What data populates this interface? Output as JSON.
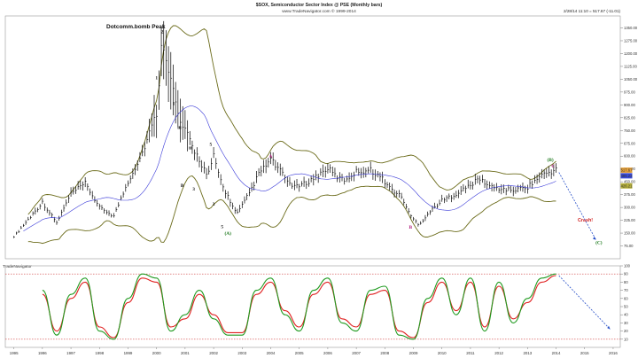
{
  "header": {
    "title": "$SOX, Semiconductor Sector Index @ PSE (Monthly bars)",
    "subtitle": "www.TradeNavigator.com © 1999-2014",
    "quote": "2/28/14 11:10 = 517.67 (-11.01)"
  },
  "annotations": {
    "peak_label": "Dotcomm.bomb Peak",
    "logo": "TradeNavigator",
    "crash_label": "Crash!"
  },
  "colors": {
    "price_bars": "#000000",
    "bands": "#6b6b1a",
    "moving_average": "#3838d8",
    "stoch_k": "#1f9a1f",
    "stoch_d": "#e02020",
    "projection": "#2850c8",
    "reference_lines": "#d04040"
  },
  "chart_data": [
    {
      "type": "line",
      "title": "$SOX, Semiconductor Sector Index @ PSE (Monthly bars)",
      "x_ticks": [
        "1995",
        "1996",
        "1997",
        "1998",
        "1999",
        "2000",
        "2001",
        "2002",
        "2003",
        "2004",
        "2005",
        "2006",
        "2007",
        "2008",
        "2009",
        "2010",
        "2011",
        "2012",
        "2013",
        "2014",
        "2015",
        "2016"
      ],
      "y_ticks": [
        "1350.00",
        "1275.00",
        "1200.00",
        "1125.00",
        "1050.00",
        "975.00",
        "900.00",
        "825.00",
        "750.00",
        "675.00",
        "600.00",
        "525.00",
        "450.00",
        "375.00",
        "300.00",
        "225.00",
        "150.00",
        "75.00"
      ],
      "ylim": [
        0,
        1420
      ],
      "price_labels": [
        "517.67",
        "485.23",
        "426.21"
      ],
      "x": [
        1995.0,
        1995.5,
        1996.0,
        1996.5,
        1997.0,
        1997.5,
        1998.0,
        1998.5,
        1999.0,
        1999.5,
        2000.0,
        2000.2,
        2000.5,
        2000.8,
        2001.0,
        2001.3,
        2001.5,
        2001.8,
        2002.0,
        2002.3,
        2002.6,
        2002.8,
        2003.0,
        2003.3,
        2003.6,
        2004.0,
        2004.3,
        2004.6,
        2004.9,
        2005.2,
        2005.5,
        2006.0,
        2006.3,
        2006.6,
        2007.0,
        2007.5,
        2007.9,
        2008.2,
        2008.6,
        2008.9,
        2009.2,
        2009.6,
        2010.0,
        2010.5,
        2011.0,
        2011.3,
        2011.7,
        2012.0,
        2012.5,
        2013.0,
        2013.5,
        2014.0
      ],
      "series": [
        {
          "values": [
            130,
            230,
            330,
            210,
            380,
            440,
            300,
            250,
            450,
            620,
            850,
            1300,
            1050,
            800,
            750,
            640,
            580,
            480,
            600,
            430,
            330,
            260,
            310,
            400,
            500,
            580,
            520,
            450,
            420,
            440,
            470,
            530,
            480,
            460,
            510,
            520,
            470,
            410,
            360,
            250,
            200,
            280,
            340,
            380,
            430,
            470,
            420,
            410,
            400,
            420,
            490,
            520
          ]
        }
      ],
      "wave_labels": [
        {
          "text": "1",
          "x": 2000.0,
          "y": 1050
        },
        {
          "text": "2",
          "x": 2000.2,
          "y": 1320
        },
        {
          "text": "1",
          "x": 2000.6,
          "y": 900
        },
        {
          "text": "iii",
          "x": 2000.8,
          "y": 760
        },
        {
          "text": "B",
          "x": 2000.9,
          "y": 420
        },
        {
          "text": "iii",
          "x": 2001.2,
          "y": 640
        },
        {
          "text": "3",
          "x": 2001.3,
          "y": 400
        },
        {
          "text": "5",
          "x": 2001.9,
          "y": 660
        },
        {
          "text": "3",
          "x": 2002.0,
          "y": 310
        },
        {
          "text": "5",
          "x": 2002.3,
          "y": 180
        },
        {
          "text": "(A)",
          "x": 2002.5,
          "y": 140
        },
        {
          "text": "A",
          "x": 2004.0,
          "y": 590
        },
        {
          "text": "B",
          "x": 2008.9,
          "y": 175
        },
        {
          "text": "(B)",
          "x": 2013.8,
          "y": 570
        },
        {
          "text": "C",
          "x": 2013.9,
          "y": 535
        },
        {
          "text": "(C)",
          "x": 2015.5,
          "y": 85
        }
      ]
    },
    {
      "type": "line",
      "title": "",
      "y_ticks": [
        "100",
        "90",
        "80",
        "70",
        "60",
        "50",
        "40",
        "30",
        "20",
        "10"
      ],
      "ylim": [
        0,
        100
      ],
      "levels": [
        90,
        10
      ],
      "x": [
        1996.0,
        1996.5,
        1997.0,
        1997.5,
        1998.0,
        1998.5,
        1999.0,
        1999.5,
        2000.0,
        2000.5,
        2001.0,
        2001.5,
        2002.0,
        2002.5,
        2003.0,
        2003.5,
        2004.0,
        2004.5,
        2005.0,
        2005.5,
        2006.0,
        2006.5,
        2007.0,
        2007.5,
        2008.0,
        2008.5,
        2009.0,
        2009.5,
        2010.0,
        2010.5,
        2011.0,
        2011.5,
        2012.0,
        2012.5,
        2013.0,
        2013.5,
        2014.0
      ],
      "series": [
        {
          "name": "%K",
          "values": [
            70,
            15,
            65,
            85,
            20,
            10,
            60,
            90,
            85,
            20,
            40,
            70,
            35,
            15,
            15,
            70,
            85,
            40,
            20,
            70,
            85,
            30,
            20,
            70,
            75,
            15,
            10,
            60,
            85,
            40,
            85,
            20,
            80,
            30,
            60,
            85,
            90
          ]
        },
        {
          "name": "%D",
          "values": [
            65,
            20,
            60,
            80,
            25,
            12,
            55,
            85,
            80,
            25,
            35,
            65,
            40,
            18,
            18,
            65,
            80,
            45,
            25,
            65,
            80,
            35,
            25,
            65,
            70,
            20,
            12,
            55,
            80,
            45,
            80,
            25,
            75,
            35,
            55,
            80,
            88
          ]
        }
      ]
    }
  ]
}
